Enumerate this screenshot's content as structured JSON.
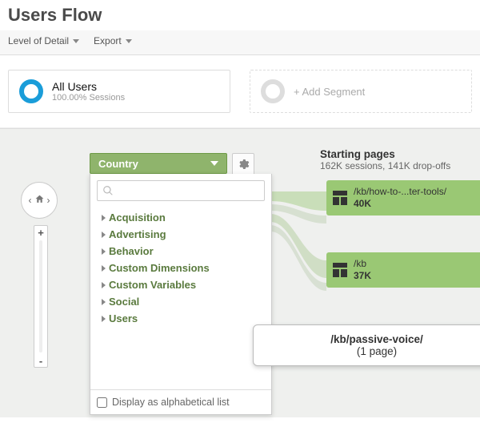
{
  "header": {
    "title": "Users Flow"
  },
  "menubar": {
    "detail_label": "Level of Detail",
    "export_label": "Export"
  },
  "segments": {
    "all_users_title": "All Users",
    "all_users_sub": "100.00% Sessions",
    "accent_color": "#1a9dd9",
    "add_label": "+ Add Segment"
  },
  "flow": {
    "background": "#eff0ee",
    "dimension_selected": "Country",
    "dimension_bg": "#8fb46c",
    "dimension_options": [
      "Acquisition",
      "Advertising",
      "Behavior",
      "Custom Dimensions",
      "Custom Variables",
      "Social",
      "Users"
    ],
    "alpha_checkbox_label": "Display as alphabetical list",
    "starting_title": "Starting pages",
    "starting_sub": "162K sessions, 141K drop-offs",
    "node_color": "#9ac874",
    "nodes": [
      {
        "path": "/kb/how-to-...ter-tools/",
        "count": "40K"
      },
      {
        "path": "/kb",
        "count": "37K"
      }
    ],
    "tooltip_path": "/kb/passive-voice/",
    "tooltip_sub": "(1 page)",
    "zoom_plus": "+",
    "zoom_minus": "-",
    "nav_left": "‹",
    "nav_right": "›"
  }
}
